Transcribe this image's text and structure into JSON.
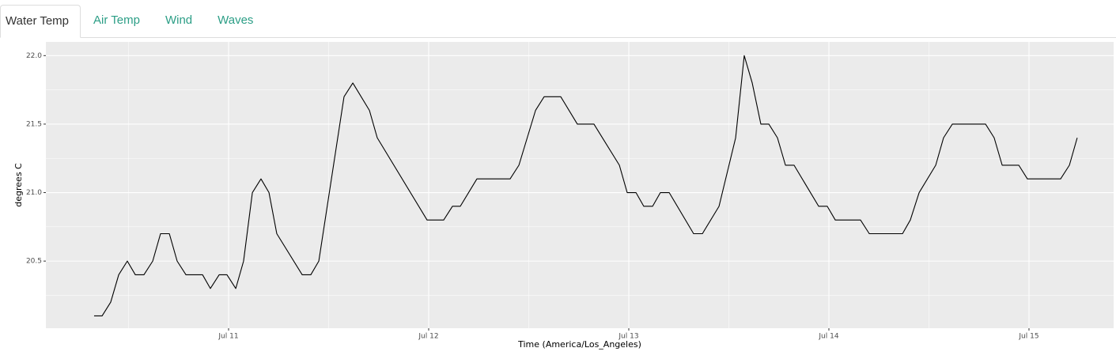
{
  "tabs": [
    "Water Temp",
    "Air Temp",
    "Wind",
    "Waves"
  ],
  "chart_data": {
    "type": "line",
    "x_label": "Time (America/Los_Angeles)",
    "y_label": "degrees C",
    "xlim": [
      10.087,
      15.423
    ],
    "ylim": [
      20.01,
      22.1
    ],
    "xticks": [
      {
        "value": 11,
        "label": "Jul 11"
      },
      {
        "value": 12,
        "label": "Jul 12"
      },
      {
        "value": 13,
        "label": "Jul 13"
      },
      {
        "value": 14,
        "label": "Jul 14"
      },
      {
        "value": 15,
        "label": "Jul 15"
      }
    ],
    "yticks": [
      20.5,
      {
        "value": 21,
        "label": "21.0"
      },
      21.5,
      {
        "value": 22,
        "label": "22.0"
      }
    ],
    "grid": true,
    "series": [
      {
        "color": "#000000",
        "x": [
          10.328,
          10.368,
          10.411,
          10.451,
          10.494,
          10.534,
          10.577,
          10.621,
          10.66,
          10.704,
          10.743,
          10.787,
          10.87,
          10.909,
          10.953,
          10.992,
          11.036,
          11.075,
          11.119,
          11.162,
          11.202,
          11.241,
          11.368,
          11.411,
          11.451,
          11.577,
          11.621,
          11.704,
          11.743,
          11.992,
          12.075,
          12.119,
          12.158,
          12.241,
          12.407,
          12.451,
          12.534,
          12.577,
          12.66,
          12.743,
          12.826,
          12.953,
          12.992,
          13.036,
          13.075,
          13.119,
          13.158,
          13.202,
          13.324,
          13.368,
          13.451,
          13.534,
          13.577,
          13.617,
          13.66,
          13.7,
          13.743,
          13.783,
          13.826,
          13.949,
          13.992,
          14.032,
          14.158,
          14.202,
          14.368,
          14.407,
          14.451,
          14.534,
          14.573,
          14.617,
          14.783,
          14.826,
          14.866,
          14.949,
          14.992,
          15.158,
          15.202,
          15.241
        ],
        "values": [
          20.1,
          20.1,
          20.2,
          20.4,
          20.5,
          20.4,
          20.4,
          20.5,
          20.7,
          20.7,
          20.5,
          20.4,
          20.4,
          20.3,
          20.4,
          20.4,
          20.3,
          20.5,
          21.0,
          21.1,
          21.0,
          20.7,
          20.4,
          20.4,
          20.5,
          21.7,
          21.8,
          21.6,
          21.4,
          20.8,
          20.8,
          20.9,
          20.9,
          21.1,
          21.1,
          21.2,
          21.6,
          21.7,
          21.7,
          21.5,
          21.5,
          21.2,
          21.0,
          21.0,
          20.9,
          20.9,
          21.0,
          21.0,
          20.7,
          20.7,
          20.9,
          21.4,
          22.0,
          21.8,
          21.5,
          21.5,
          21.4,
          21.2,
          21.2,
          20.9,
          20.9,
          20.8,
          20.8,
          20.7,
          20.7,
          20.8,
          21.0,
          21.2,
          21.4,
          21.5,
          21.5,
          21.4,
          21.2,
          21.2,
          21.1,
          21.1,
          21.2,
          21.4
        ]
      }
    ]
  }
}
